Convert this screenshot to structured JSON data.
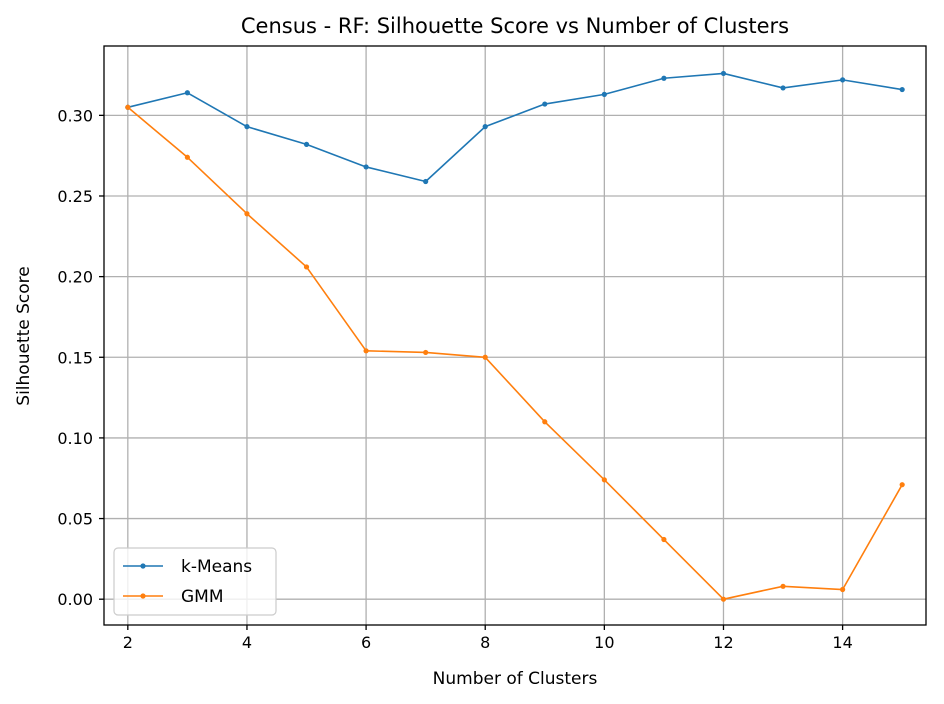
{
  "chart_data": {
    "type": "line",
    "title": "Census - RF: Silhouette Score vs Number of Clusters",
    "xlabel": "Number of Clusters",
    "ylabel": "Silhouette Score",
    "x": [
      2,
      3,
      4,
      5,
      6,
      7,
      8,
      9,
      10,
      11,
      12,
      13,
      14,
      15
    ],
    "xlim": [
      1.6,
      15.4
    ],
    "ylim": [
      -0.016,
      0.343
    ],
    "xticks": [
      2,
      4,
      6,
      8,
      10,
      12,
      14
    ],
    "yticks": [
      0.0,
      0.05,
      0.1,
      0.15,
      0.2,
      0.25,
      0.3
    ],
    "xtick_labels": [
      "2",
      "4",
      "6",
      "8",
      "10",
      "12",
      "14"
    ],
    "ytick_labels": [
      "0.00",
      "0.05",
      "0.10",
      "0.15",
      "0.20",
      "0.25",
      "0.30"
    ],
    "grid": true,
    "legend_position": "lower-left",
    "series": [
      {
        "name": "k-Means",
        "color": "#1f77b4",
        "values": [
          0.305,
          0.314,
          0.293,
          0.282,
          0.268,
          0.259,
          0.293,
          0.307,
          0.313,
          0.323,
          0.326,
          0.317,
          0.322,
          0.316
        ]
      },
      {
        "name": "GMM",
        "color": "#ff7f0e",
        "values": [
          0.305,
          0.274,
          0.239,
          0.206,
          0.154,
          0.153,
          0.15,
          0.11,
          0.074,
          0.037,
          0.0,
          0.008,
          0.006,
          0.071
        ]
      }
    ]
  }
}
